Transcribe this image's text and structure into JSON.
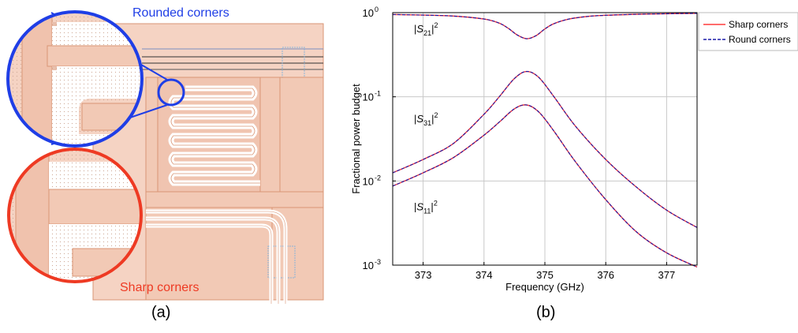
{
  "panel_a": {
    "caption": "(a)",
    "rounded_label": "Rounded corners",
    "sharp_label": "Sharp corners",
    "colors": {
      "rounded": "#1f3ee6",
      "sharp": "#ee3a23",
      "metal": "#f2c9b5",
      "metal_edge": "#d99575",
      "gap": "#ffffff"
    }
  },
  "panel_b": {
    "caption": "(b)"
  },
  "chart_data": {
    "type": "line",
    "xlabel": "Frequency (GHz)",
    "ylabel": "Fractional power budget",
    "xlim": [
      372.5,
      377.5
    ],
    "ylim": [
      0.001,
      1
    ],
    "yscale": "log",
    "grid": true,
    "legend_position": "outside-right-top",
    "x_ticks": [
      373,
      374,
      375,
      376,
      377
    ],
    "x_tick_labels": [
      "373",
      "374",
      "375",
      "376",
      "377"
    ],
    "y_ticks": [
      0.001,
      0.01,
      0.1,
      1
    ],
    "y_tick_labels": [
      "10",
      "10",
      "10",
      "10"
    ],
    "y_tick_exponents": [
      "-3",
      "-2",
      "-1",
      "0"
    ],
    "legend": [
      {
        "name": "Sharp corners",
        "color": "#ff3b3b",
        "dash": "solid"
      },
      {
        "name": "Round corners",
        "color": "#1a1aa8",
        "dash": "dashed"
      }
    ],
    "annotations": [
      {
        "text": "|S",
        "sub": "21",
        "sup": "2",
        "x": 372.85,
        "y": 0.58
      },
      {
        "text": "|S",
        "sub": "31",
        "sup": "2",
        "x": 372.85,
        "y": 0.05
      },
      {
        "text": "|S",
        "sub": "11",
        "sup": "2",
        "x": 372.85,
        "y": 0.0045
      }
    ],
    "series": [
      {
        "curve": "S21",
        "x": [
          372.5,
          373.0,
          373.5,
          374.0,
          374.25,
          374.4,
          374.55,
          374.7,
          374.85,
          375.0,
          375.15,
          375.4,
          375.7,
          376.0,
          376.5,
          377.0,
          377.5
        ],
        "y": [
          0.95,
          0.935,
          0.91,
          0.84,
          0.75,
          0.65,
          0.54,
          0.49,
          0.53,
          0.64,
          0.74,
          0.84,
          0.9,
          0.93,
          0.955,
          0.97,
          0.98
        ]
      },
      {
        "curve": "S31",
        "x": [
          372.5,
          373.0,
          373.5,
          374.0,
          374.25,
          374.5,
          374.7,
          374.9,
          375.15,
          375.5,
          376.0,
          376.5,
          377.0,
          377.5
        ],
        "y": [
          0.0125,
          0.018,
          0.028,
          0.062,
          0.1,
          0.165,
          0.2,
          0.17,
          0.1,
          0.045,
          0.018,
          0.0085,
          0.0045,
          0.0028
        ]
      },
      {
        "curve": "S11",
        "x": [
          372.5,
          373.0,
          373.5,
          374.0,
          374.25,
          374.5,
          374.7,
          374.9,
          375.15,
          375.5,
          376.0,
          376.5,
          377.0,
          377.5
        ],
        "y": [
          0.0087,
          0.0125,
          0.019,
          0.035,
          0.05,
          0.072,
          0.08,
          0.066,
          0.039,
          0.017,
          0.006,
          0.0025,
          0.0014,
          0.00095
        ]
      }
    ]
  }
}
